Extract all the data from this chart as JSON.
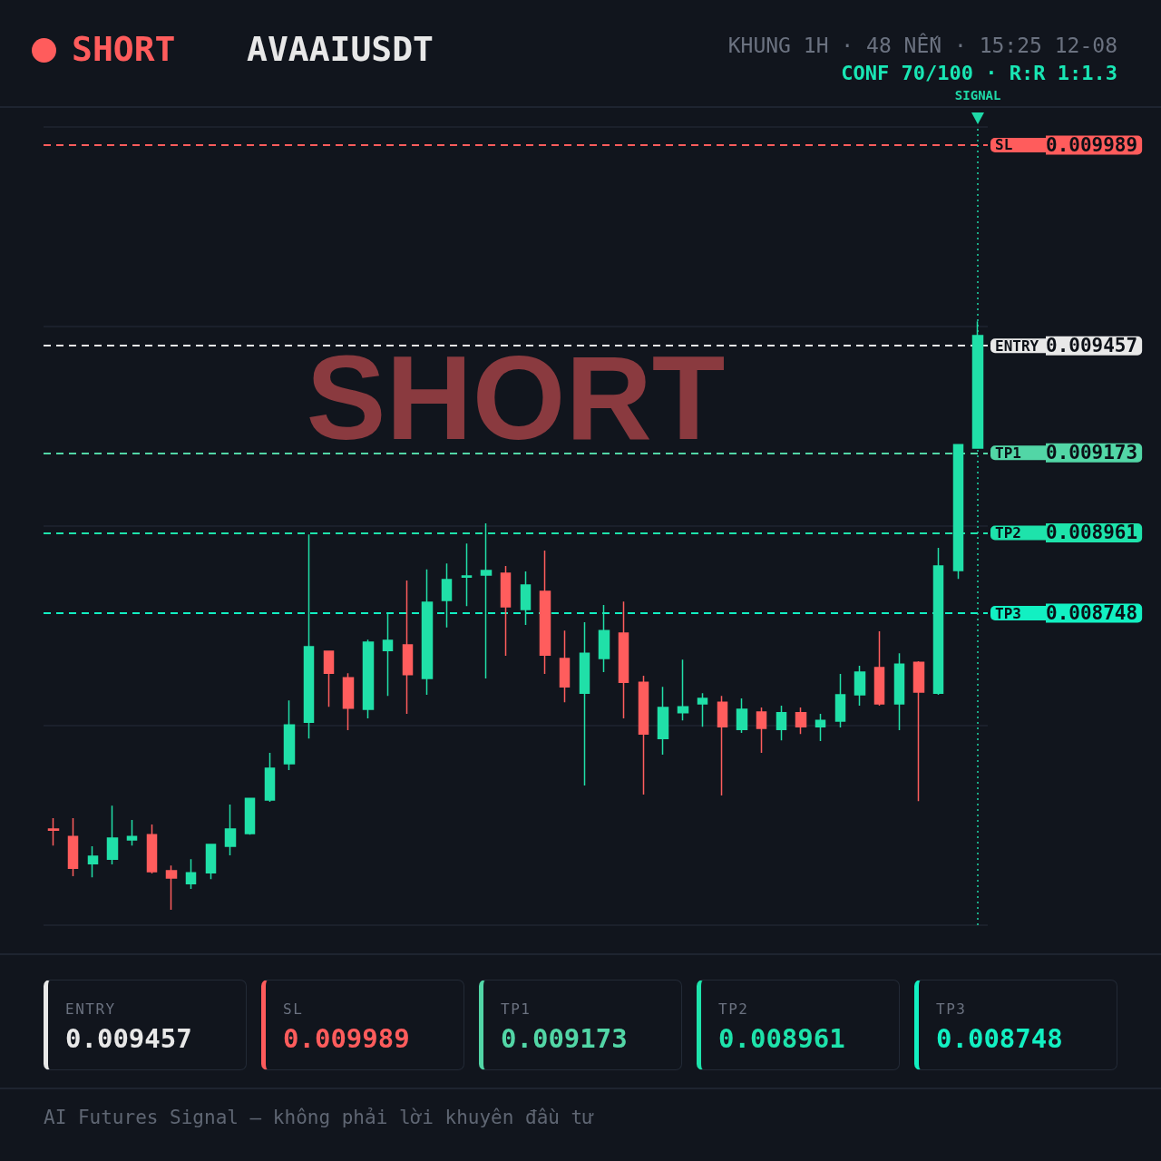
{
  "chart_data": {
    "type": "candlestick",
    "title": "AVAAIUSDT",
    "subtitle": "KHUNG 1H · 48 NẾN · 15:25 12-08",
    "annotations": [
      "SHORT",
      "CONF 70/100 · R:R 1:1.3",
      "SHORT",
      "SIGNAL",
      "AI Futures Signal — không phải lời khuyên đầu tư",
      "0.009457",
      "0.009989",
      "0.009173",
      "0.008961",
      "0.008748"
    ],
    "categories": [
      null,
      null,
      null,
      null,
      null,
      null,
      null,
      null,
      null,
      null,
      null,
      null,
      null,
      null,
      null,
      null,
      null,
      null,
      null,
      null,
      null,
      null,
      null,
      null,
      null,
      null,
      null,
      null,
      null,
      null,
      null,
      null,
      null,
      null,
      null,
      null,
      null,
      null,
      null,
      null,
      null,
      null,
      null,
      null,
      null,
      null,
      null,
      null
    ],
    "ohlc": [
      [
        0.008176,
        0.008205,
        0.008132,
        0.008173
      ],
      [
        0.008156,
        0.008205,
        0.008051,
        0.008072
      ],
      [
        0.008084,
        0.00813,
        0.008048,
        0.008104
      ],
      [
        0.008096,
        0.008238,
        0.008082,
        0.008152
      ],
      [
        0.008147,
        0.0082,
        0.008132,
        0.008156
      ],
      [
        0.008161,
        0.008188,
        0.008058,
        0.008063
      ],
      [
        0.008065,
        0.008079,
        0.007962,
        0.008046
      ],
      [
        0.008031,
        0.008096,
        0.008017,
        0.00806
      ],
      [
        0.00806,
        0.008135,
        0.008043,
        0.008135
      ],
      [
        0.00813,
        0.008241,
        0.008106,
        0.008176
      ],
      [
        0.008164,
        0.008257,
        0.008161,
        0.008257
      ],
      [
        0.008253,
        0.008378,
        0.008248,
        0.008337
      ],
      [
        0.008349,
        0.008517,
        0.008332,
        0.008452
      ],
      [
        0.008459,
        0.008957,
        0.008416,
        0.008659
      ],
      [
        0.008647,
        0.008649,
        0.0085,
        0.008589
      ],
      [
        0.008577,
        0.008589,
        0.008438,
        0.008496
      ],
      [
        0.008493,
        0.008678,
        0.008469,
        0.008671
      ],
      [
        0.008649,
        0.008746,
        0.008529,
        0.008676
      ],
      [
        0.008664,
        0.008835,
        0.008481,
        0.008585
      ],
      [
        0.008575,
        0.008864,
        0.008532,
        0.008777
      ],
      [
        0.008782,
        0.00888,
        0.00871,
        0.008837
      ],
      [
        0.008844,
        0.008933,
        0.008767,
        0.008847
      ],
      [
        0.008849,
        0.008986,
        0.008575,
        0.008861
      ],
      [
        0.008854,
        0.008873,
        0.008635,
        0.008765
      ],
      [
        0.008758,
        0.008859,
        0.008717,
        0.008823
      ],
      [
        0.008806,
        0.008914,
        0.008587,
        0.008637
      ],
      [
        0.008628,
        0.008702,
        0.008512,
        0.008553
      ],
      [
        0.008536,
        0.008724,
        0.008291,
        0.008642
      ],
      [
        0.008628,
        0.00877,
        0.008592,
        0.008702
      ],
      [
        0.008695,
        0.008779,
        0.008469,
        0.008565
      ],
      [
        0.008565,
        0.008582,
        0.008267,
        0.008428
      ],
      [
        0.008416,
        0.008553,
        0.008373,
        0.008498
      ],
      [
        0.008484,
        0.008625,
        0.008464,
        0.0085
      ],
      [
        0.008508,
        0.008536,
        0.008447,
        0.008522
      ],
      [
        0.008512,
        0.008529,
        0.008265,
        0.008447
      ],
      [
        0.00844,
        0.008522,
        0.008431,
        0.008493
      ],
      [
        0.008486,
        0.008498,
        0.008378,
        0.008443
      ],
      [
        0.00844,
        0.008503,
        0.008411,
        0.008484
      ],
      [
        0.008484,
        0.008498,
        0.008428,
        0.008447
      ],
      [
        0.008447,
        0.008481,
        0.008409,
        0.008464
      ],
      [
        0.008462,
        0.008587,
        0.008445,
        0.008532
      ],
      [
        0.008532,
        0.008609,
        0.008503,
        0.008592
      ],
      [
        0.008604,
        0.0087,
        0.008503,
        0.008508
      ],
      [
        0.008508,
        0.008642,
        0.008438,
        0.008613
      ],
      [
        0.008618,
        0.008621,
        0.00825,
        0.008539
      ],
      [
        0.008536,
        0.008921,
        0.008532,
        0.008873
      ],
      [
        0.008861,
        0.009195,
        0.008839,
        0.009195
      ],
      [
        0.009186,
        0.009522,
        0.009186,
        0.009484
      ]
    ],
    "colors": [
      "#ff5d5d",
      "#ff5d5d",
      "#20e0a8",
      "#20e0a8",
      "#20e0a8",
      "#ff5d5d",
      "#ff5d5d",
      "#20e0a8",
      "#20e0a8",
      "#20e0a8",
      "#20e0a8",
      "#20e0a8",
      "#20e0a8",
      "#20e0a8",
      "#ff5d5d",
      "#ff5d5d",
      "#20e0a8",
      "#20e0a8",
      "#ff5d5d",
      "#20e0a8",
      "#20e0a8",
      "#20e0a8",
      "#20e0a8",
      "#ff5d5d",
      "#20e0a8",
      "#ff5d5d",
      "#ff5d5d",
      "#20e0a8",
      "#20e0a8",
      "#ff5d5d",
      "#ff5d5d",
      "#20e0a8",
      "#20e0a8",
      "#20e0a8",
      "#ff5d5d",
      "#20e0a8",
      "#ff5d5d",
      "#20e0a8",
      "#ff5d5d",
      "#20e0a8",
      "#20e0a8",
      "#20e0a8",
      "#ff5d5d",
      "#20e0a8",
      "#ff5d5d",
      "#20e0a8",
      "#20e0a8",
      "#20e0a8"
    ],
    "ylim": [
      0.007921,
      0.010037
    ],
    "yticks": [
      {
        "value": 0.007921,
        "label": null
      },
      {
        "value": 0.00845,
        "label": null
      },
      0.008748,
      0.008961,
      {
        "value": 0.008979,
        "label": null
      },
      0.009173,
      0.009457,
      {
        "value": 0.009508,
        "label": null
      },
      0.009989,
      {
        "value": 0.010037,
        "label": null
      }
    ],
    "grid": "y",
    "tick_labels": "y",
    "ref_lines": [
      {
        "axis": "y",
        "value": 0.009457,
        "label": "ENTRY",
        "color": "#e8e8e8",
        "line_style": "dashed"
      },
      {
        "axis": "y",
        "value": 0.009989,
        "label": "SL",
        "color": "#ff5c5c",
        "line_style": "dashed"
      },
      {
        "axis": "y",
        "value": 0.009173,
        "label": "TP1",
        "color": "#52d6a6",
        "line_style": "dashed"
      },
      {
        "axis": "y",
        "value": 0.008961,
        "label": "TP2",
        "color": "#1ee3ab",
        "line_style": "dashed"
      },
      {
        "axis": "y",
        "value": 0.008748,
        "label": "TP3",
        "color": "#12f0c2",
        "line_style": "dashed"
      }
    ]
  }
}
